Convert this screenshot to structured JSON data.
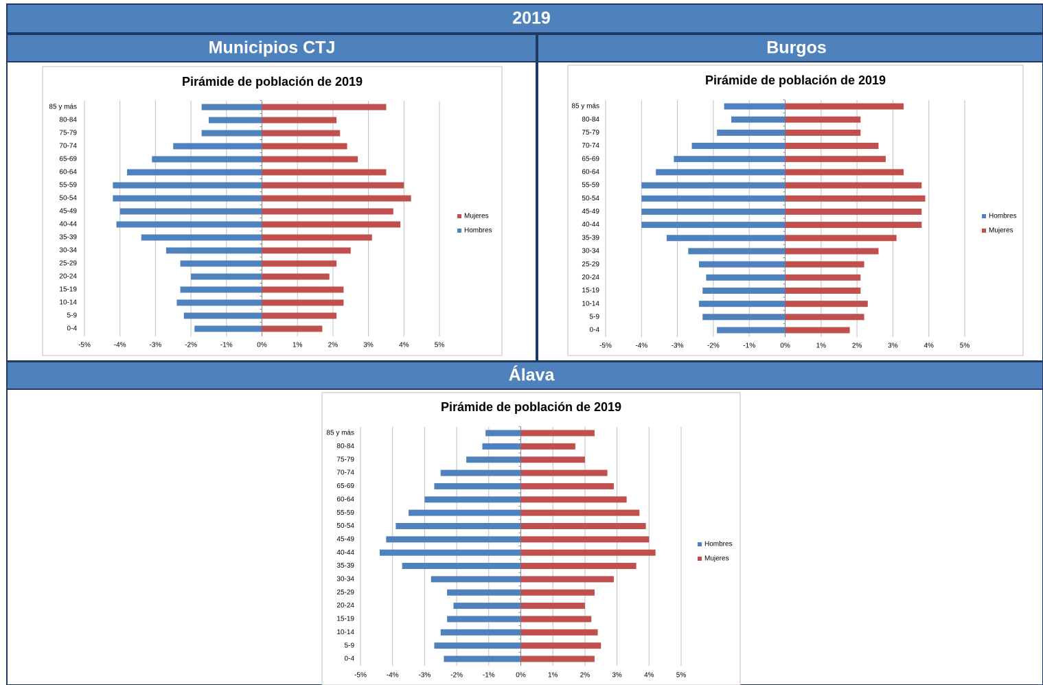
{
  "header": "2019",
  "chart_data": [
    {
      "type": "bar",
      "orientation": "horizontal",
      "panel_title": "Municipios CTJ",
      "title": "Pirámide de población de 2019",
      "categories": [
        "85 y más",
        "80-84",
        "75-79",
        "70-74",
        "65-69",
        "60-64",
        "55-59",
        "50-54",
        "45-49",
        "40-44",
        "35-39",
        "30-34",
        "25-29",
        "20-24",
        "15-19",
        "10-14",
        "5-9",
        "0-4"
      ],
      "series": [
        {
          "name": "Mujeres",
          "color": "#c0504d",
          "values": [
            3.5,
            2.1,
            2.2,
            2.4,
            2.7,
            3.5,
            4.0,
            4.2,
            3.7,
            3.9,
            3.1,
            2.5,
            2.1,
            1.9,
            2.3,
            2.3,
            2.1,
            1.7
          ]
        },
        {
          "name": "Hombres",
          "color": "#4f81bd",
          "values": [
            -1.7,
            -1.5,
            -1.7,
            -2.5,
            -3.1,
            -3.8,
            -4.2,
            -4.2,
            -4.0,
            -4.1,
            -3.4,
            -2.7,
            -2.3,
            -2.0,
            -2.3,
            -2.4,
            -2.2,
            -1.9
          ]
        }
      ],
      "xlim": [
        -5,
        5
      ],
      "xticks": [
        {
          "value": -5,
          "label": "-5%"
        },
        {
          "value": -4,
          "label": "-4%"
        },
        {
          "value": -3,
          "label": "-3%"
        },
        {
          "value": -2,
          "label": "-2%"
        },
        {
          "value": -1,
          "label": "-1%"
        },
        {
          "value": 0,
          "label": "0%"
        },
        {
          "value": 1,
          "label": "1%"
        },
        {
          "value": 2,
          "label": "2%"
        },
        {
          "value": 3,
          "label": "3%"
        },
        {
          "value": 4,
          "label": "4%"
        },
        {
          "value": 5,
          "label": "5%"
        }
      ],
      "grid": true,
      "legend": "right"
    },
    {
      "type": "bar",
      "orientation": "horizontal",
      "panel_title": "Burgos",
      "title": "Pirámide de población de 2019",
      "categories": [
        "85 y más",
        "80-84",
        "75-79",
        "70-74",
        "65-69",
        "60-64",
        "55-59",
        "50-54",
        "45-49",
        "40-44",
        "35-39",
        "30-34",
        "25-29",
        "20-24",
        "15-19",
        "10-14",
        "5-9",
        "0-4"
      ],
      "series": [
        {
          "name": "Hombres",
          "color": "#4f81bd",
          "values": [
            -1.7,
            -1.5,
            -1.9,
            -2.6,
            -3.1,
            -3.6,
            -4.0,
            -4.0,
            -4.0,
            -4.0,
            -3.3,
            -2.7,
            -2.4,
            -2.2,
            -2.3,
            -2.4,
            -2.3,
            -1.9
          ]
        },
        {
          "name": "Mujeres",
          "color": "#c0504d",
          "values": [
            3.3,
            2.1,
            2.1,
            2.6,
            2.8,
            3.3,
            3.8,
            3.9,
            3.8,
            3.8,
            3.1,
            2.6,
            2.2,
            2.1,
            2.1,
            2.3,
            2.2,
            1.8
          ]
        }
      ],
      "xlim": [
        -5,
        5
      ],
      "xticks": [
        {
          "value": -5,
          "label": "-5%"
        },
        {
          "value": -4,
          "label": "-4%"
        },
        {
          "value": -3,
          "label": "-3%"
        },
        {
          "value": -2,
          "label": "-2%"
        },
        {
          "value": -1,
          "label": "-1%"
        },
        {
          "value": 0,
          "label": "0%"
        },
        {
          "value": 1,
          "label": "1%"
        },
        {
          "value": 2,
          "label": "2%"
        },
        {
          "value": 3,
          "label": "3%"
        },
        {
          "value": 4,
          "label": "4%"
        },
        {
          "value": 5,
          "label": "5%"
        }
      ],
      "grid": true,
      "legend": "right"
    },
    {
      "type": "bar",
      "orientation": "horizontal",
      "panel_title": "Álava",
      "title": "Pirámide de población de 2019",
      "categories": [
        "85 y más",
        "80-84",
        "75-79",
        "70-74",
        "65-69",
        "60-64",
        "55-59",
        "50-54",
        "45-49",
        "40-44",
        "35-39",
        "30-34",
        "25-29",
        "20-24",
        "15-19",
        "10-14",
        "5-9",
        "0-4"
      ],
      "series": [
        {
          "name": "Hombres",
          "color": "#4f81bd",
          "values": [
            -1.1,
            -1.2,
            -1.7,
            -2.5,
            -2.7,
            -3.0,
            -3.5,
            -3.9,
            -4.2,
            -4.4,
            -3.7,
            -2.8,
            -2.3,
            -2.1,
            -2.3,
            -2.5,
            -2.7,
            -2.4
          ]
        },
        {
          "name": "Mujeres",
          "color": "#c0504d",
          "values": [
            2.3,
            1.7,
            2.0,
            2.7,
            2.9,
            3.3,
            3.7,
            3.9,
            4.0,
            4.2,
            3.6,
            2.9,
            2.3,
            2.0,
            2.2,
            2.4,
            2.5,
            2.3
          ]
        }
      ],
      "xlim": [
        -5,
        5
      ],
      "xticks": [
        {
          "value": -5,
          "label": "-5%"
        },
        {
          "value": -4,
          "label": "-4%"
        },
        {
          "value": -3,
          "label": "-3%"
        },
        {
          "value": -2,
          "label": "-2%"
        },
        {
          "value": -1,
          "label": "-1%"
        },
        {
          "value": 0,
          "label": "0%"
        },
        {
          "value": 1,
          "label": "1%"
        },
        {
          "value": 2,
          "label": "2%"
        },
        {
          "value": 3,
          "label": "3%"
        },
        {
          "value": 4,
          "label": "4%"
        },
        {
          "value": 5,
          "label": "5%"
        }
      ],
      "grid": true,
      "legend": "right"
    }
  ]
}
